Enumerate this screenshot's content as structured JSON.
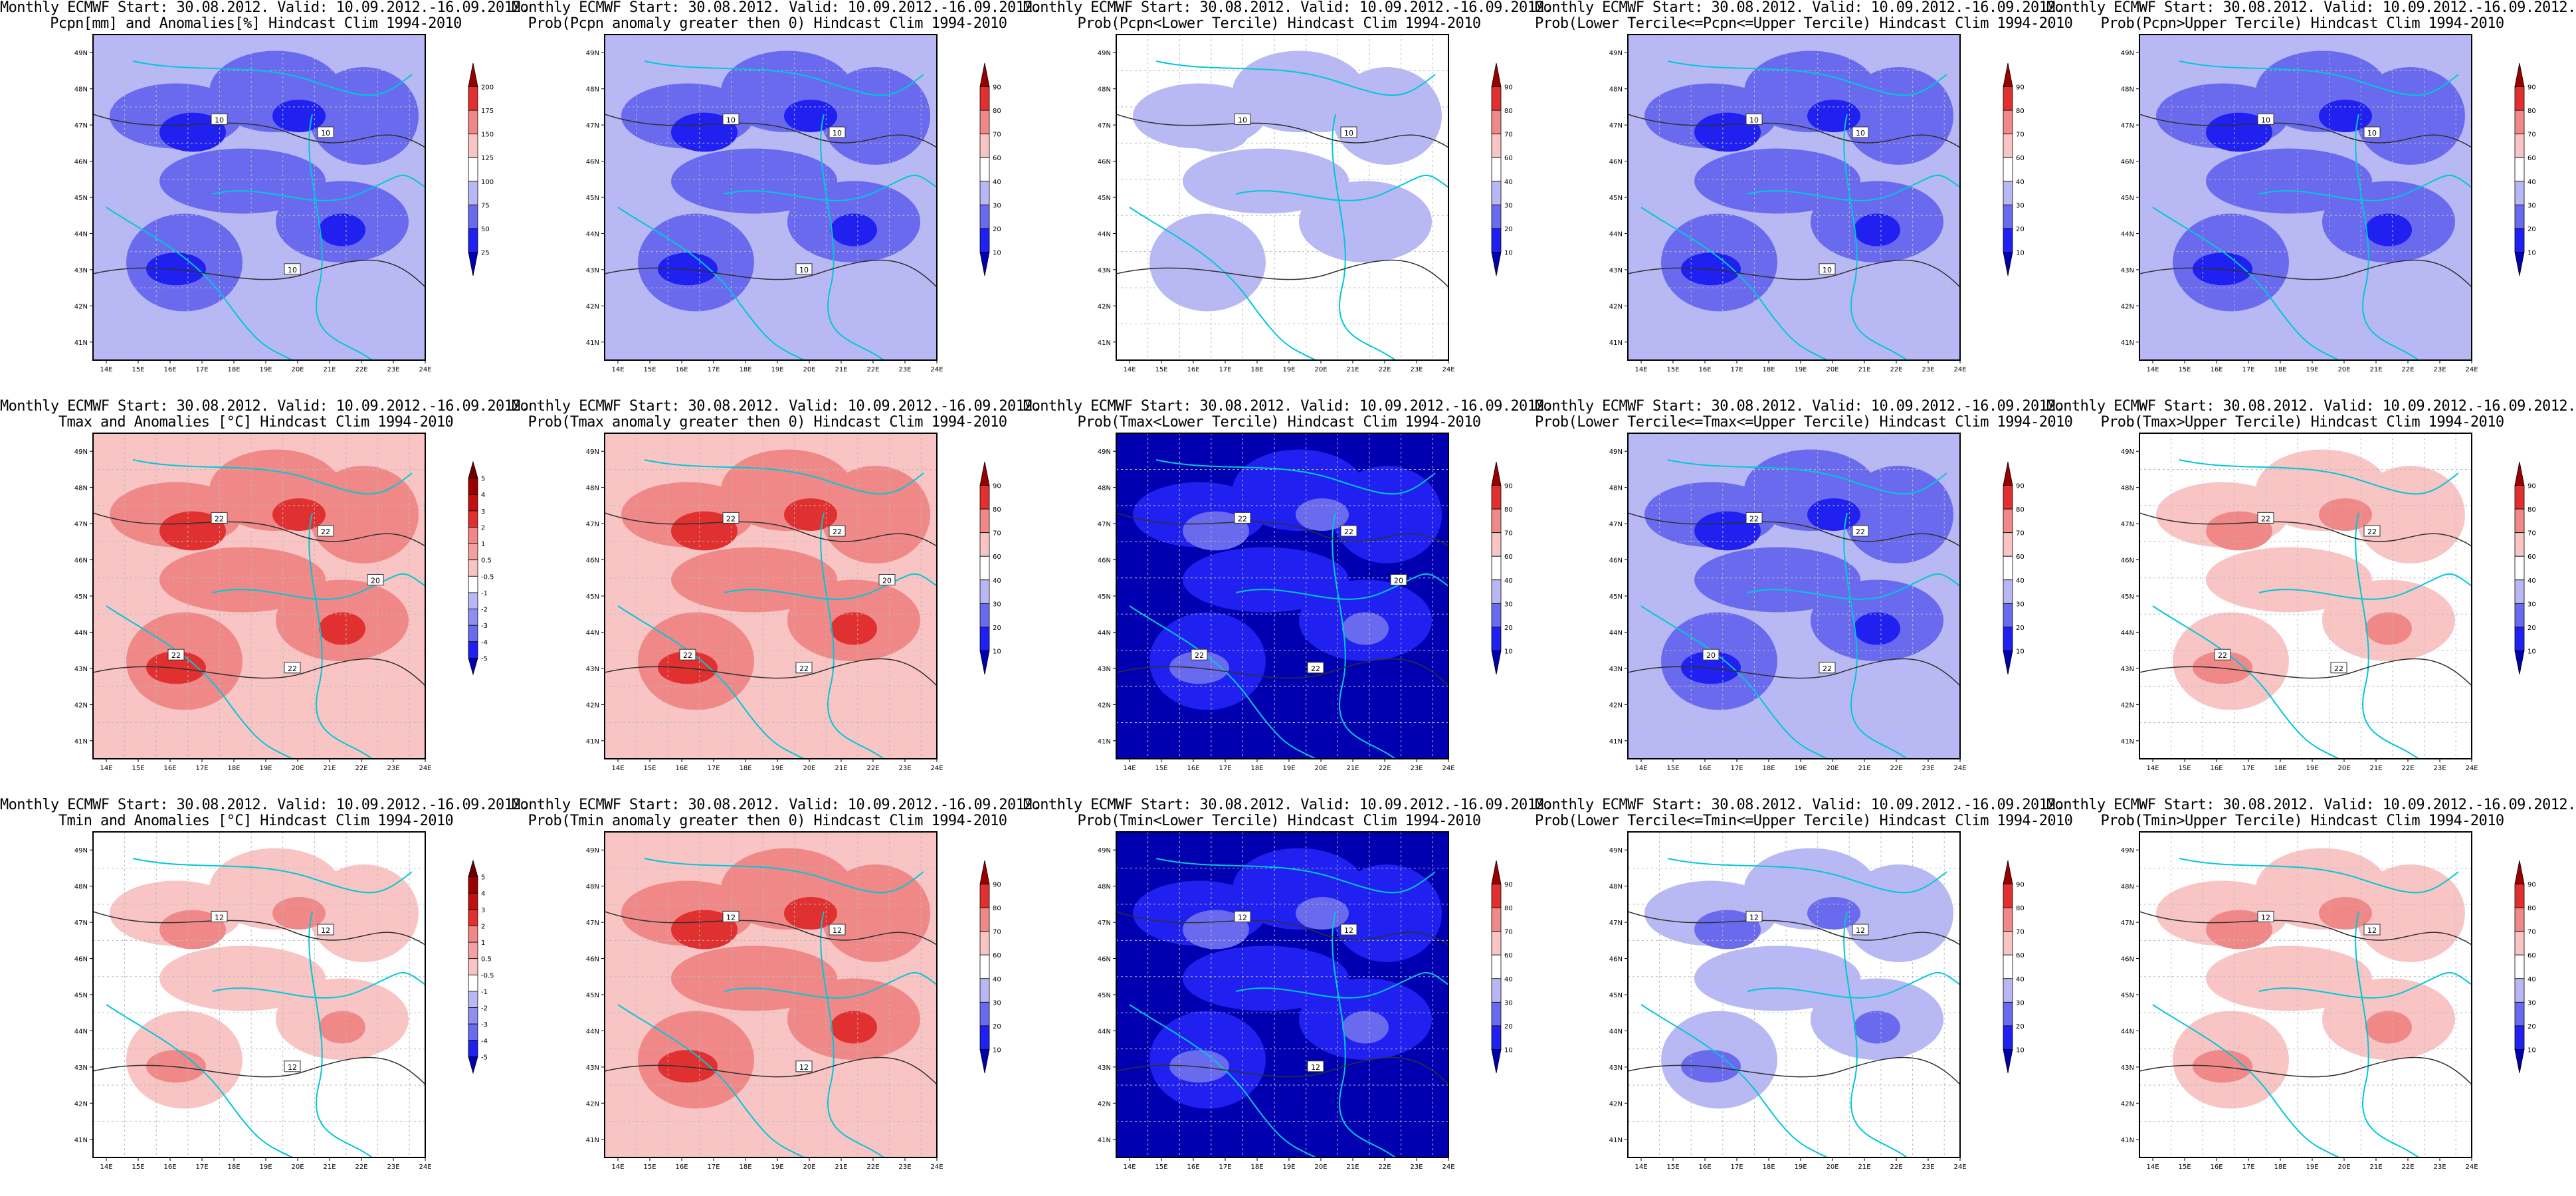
{
  "figure": {
    "rows": [
      "Pcpn",
      "Tmax",
      "Tmin"
    ],
    "lat_ticks": [
      "41N",
      "42N",
      "43N",
      "44N",
      "45N",
      "46N",
      "47N",
      "48N",
      "49N"
    ],
    "lon_ticks": [
      "14E",
      "15E",
      "16E",
      "17E",
      "18E",
      "19E",
      "20E",
      "21E",
      "22E",
      "23E",
      "24E"
    ],
    "prob_levels": [
      "10",
      "20",
      "30",
      "40",
      "60",
      "70",
      "80",
      "90"
    ],
    "pcpn_levels": [
      "25",
      "50",
      "75",
      "100",
      "125",
      "150",
      "175",
      "200"
    ],
    "temp_levels": [
      "-5",
      "-4",
      "-3",
      "-2",
      "-1",
      "-0.5",
      "0.5",
      "1",
      "2",
      "3",
      "4",
      "5"
    ],
    "colors": {
      "blue_dark": "#0000b0",
      "blue": "#2020f0",
      "blue_mid": "#6a6aee",
      "blue_light": "#b8b8f4",
      "white": "#ffffff",
      "red_light": "#f8c4c4",
      "red_mid": "#f08888",
      "red": "#e03030",
      "red_dark": "#9a0000",
      "border": "#00c8d8",
      "contour": "#303030"
    }
  },
  "panels": [
    {
      "title1": "Monthly ECMWF Start: 30.08.2012. Valid: 10.09.2012.-16.09.2012.",
      "title2": "Pcpn[mm] and Anomalies[%] Hindcast Clim 1994-2010",
      "scale": "pcpn",
      "contour_labels": [
        "10",
        "10",
        "10"
      ],
      "fill": "blue"
    },
    {
      "title1": "Monthly ECMWF Start: 30.08.2012. Valid: 10.09.2012.-16.09.2012.",
      "title2": "Prob(Pcpn anomaly greater then 0) Hindcast Clim 1994-2010",
      "scale": "prob",
      "contour_labels": [
        "10",
        "10",
        "10"
      ],
      "fill": "blue"
    },
    {
      "title1": "Monthly ECMWF Start: 30.08.2012. Valid: 10.09.2012.-16.09.2012.",
      "title2": "Prob(Pcpn<Lower Tercile) Hindcast Clim 1994-2010",
      "scale": "prob",
      "contour_labels": [
        "10",
        "10"
      ],
      "fill": "white"
    },
    {
      "title1": "Monthly ECMWF Start: 30.08.2012. Valid: 10.09.2012.-16.09.2012.",
      "title2": "Prob(Lower Tercile<=Pcpn<=Upper Tercile) Hindcast Clim 1994-2010",
      "scale": "prob",
      "contour_labels": [
        "10",
        "10",
        "10"
      ],
      "fill": "blue"
    },
    {
      "title1": "Monthly ECMWF Start: 30.08.2012. Valid: 10.09.2012.-16.09.2012.",
      "title2": "Prob(Pcpn>Upper Tercile) Hindcast Clim 1994-2010",
      "scale": "prob",
      "contour_labels": [
        "10",
        "10"
      ],
      "fill": "blue"
    },
    {
      "title1": "Monthly ECMWF Start: 30.08.2012. Valid: 10.09.2012.-16.09.2012.",
      "title2": "Tmax and Anomalies [°C] Hindcast Clim 1994-2010",
      "scale": "temp",
      "contour_labels": [
        "22",
        "22",
        "22",
        "22",
        "20"
      ],
      "fill": "red"
    },
    {
      "title1": "Monthly ECMWF Start: 30.08.2012. Valid: 10.09.2012.-16.09.2012.",
      "title2": "Prob(Tmax anomaly greater then 0) Hindcast Clim 1994-2010",
      "scale": "prob",
      "contour_labels": [
        "22",
        "22",
        "22",
        "22",
        "20"
      ],
      "fill": "red"
    },
    {
      "title1": "Monthly ECMWF Start: 30.08.2012. Valid: 10.09.2012.-16.09.2012.",
      "title2": "Prob(Tmax<Lower Tercile) Hindcast Clim 1994-2010",
      "scale": "prob",
      "contour_labels": [
        "22",
        "22",
        "22",
        "22",
        "20"
      ],
      "fill": "navy"
    },
    {
      "title1": "Monthly ECMWF Start: 30.08.2012. Valid: 10.09.2012.-16.09.2012.",
      "title2": "Prob(Lower Tercile<=Tmax<=Upper Tercile) Hindcast Clim 1994-2010",
      "scale": "prob",
      "contour_labels": [
        "22",
        "22",
        "22",
        "20"
      ],
      "fill": "blue"
    },
    {
      "title1": "Monthly ECMWF Start: 30.08.2012. Valid: 10.09.2012.-16.09.2012.",
      "title2": "Prob(Tmax>Upper Tercile) Hindcast Clim 1994-2010",
      "scale": "prob",
      "contour_labels": [
        "22",
        "22",
        "22",
        "22"
      ],
      "fill": "pink"
    },
    {
      "title1": "Monthly ECMWF Start: 30.08.2012. Valid: 10.09.2012.-16.09.2012.",
      "title2": "Tmin and Anomalies [°C] Hindcast Clim 1994-2010",
      "scale": "temp",
      "contour_labels": [
        "12",
        "12",
        "12"
      ],
      "fill": "pink"
    },
    {
      "title1": "Monthly ECMWF Start: 30.08.2012. Valid: 10.09.2012.-16.09.2012.",
      "title2": "Prob(Tmin anomaly greater then 0) Hindcast Clim 1994-2010",
      "scale": "prob",
      "contour_labels": [
        "12",
        "12",
        "12"
      ],
      "fill": "red"
    },
    {
      "title1": "Monthly ECMWF Start: 30.08.2012. Valid: 10.09.2012.-16.09.2012.",
      "title2": "Prob(Tmin<Lower Tercile) Hindcast Clim 1994-2010",
      "scale": "prob",
      "contour_labels": [
        "12",
        "12",
        "12"
      ],
      "fill": "navy"
    },
    {
      "title1": "Monthly ECMWF Start: 30.08.2012. Valid: 10.09.2012.-16.09.2012.",
      "title2": "Prob(Lower Tercile<=Tmin<=Upper Tercile) Hindcast Clim 1994-2010",
      "scale": "prob",
      "contour_labels": [
        "12",
        "12"
      ],
      "fill": "lightblue"
    },
    {
      "title1": "Monthly ECMWF Start: 30.08.2012. Valid: 10.09.2012.-16.09.2012.",
      "title2": "Prob(Tmin>Upper Tercile) Hindcast Clim 1994-2010",
      "scale": "prob",
      "contour_labels": [
        "12",
        "12"
      ],
      "fill": "pink"
    }
  ]
}
